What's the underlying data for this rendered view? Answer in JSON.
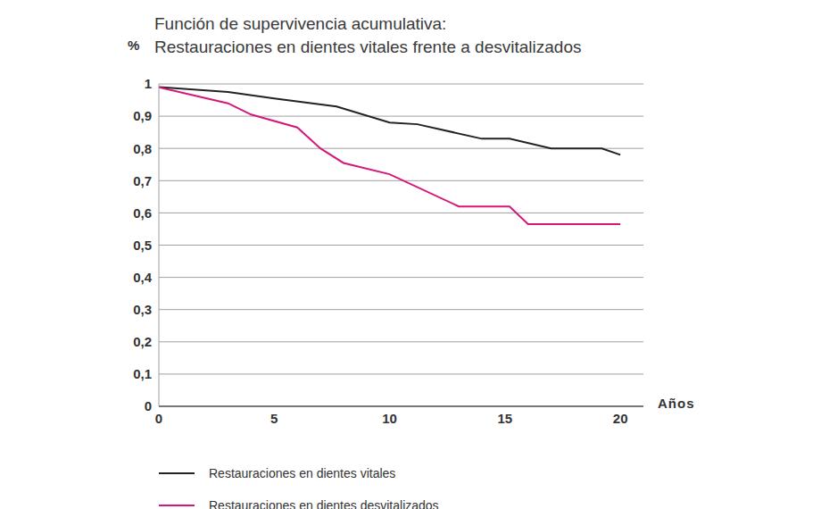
{
  "chart_data": {
    "type": "line",
    "title": "Función de supervivencia acumulativa:",
    "subtitle": "Restauraciones en dientes vitales frente a desvitalizados",
    "x_label": "Años",
    "y_label": "%",
    "xlim": [
      0,
      21
    ],
    "xticks": [
      0,
      5,
      10,
      15,
      20
    ],
    "ylim": [
      0,
      1
    ],
    "yticks": [
      0,
      {
        "value": 0.1,
        "label": "0,1"
      },
      {
        "value": 0.2,
        "label": "0,2"
      },
      {
        "value": 0.3,
        "label": "0,3"
      },
      {
        "value": 0.4,
        "label": "0,4"
      },
      {
        "value": 0.5,
        "label": "0,5"
      },
      {
        "value": 0.6,
        "label": "0,6"
      },
      {
        "value": 0.7,
        "label": "0,7"
      },
      {
        "value": 0.8,
        "label": "0,8"
      },
      {
        "value": 0.9,
        "label": "0,9"
      },
      1
    ],
    "grid": true,
    "legend": "bottom left",
    "series": [
      {
        "name": "Restauraciones en dientes vitales",
        "color": "#222222",
        "x": [
          0,
          3,
          5,
          7.7,
          10,
          11.2,
          14,
          15.2,
          17,
          19.2,
          20
        ],
        "values": [
          0.99,
          0.975,
          0.955,
          0.93,
          0.88,
          0.875,
          0.83,
          0.83,
          0.8,
          0.8,
          0.78
        ]
      },
      {
        "name": "Restauraciones en dientes desvitalizados",
        "color": "#d6177a",
        "x": [
          0,
          3,
          4,
          6,
          7,
          8,
          10,
          13,
          15.2,
          16,
          20
        ],
        "values": [
          0.99,
          0.94,
          0.905,
          0.865,
          0.8,
          0.755,
          0.72,
          0.62,
          0.62,
          0.565,
          0.565
        ]
      }
    ]
  }
}
